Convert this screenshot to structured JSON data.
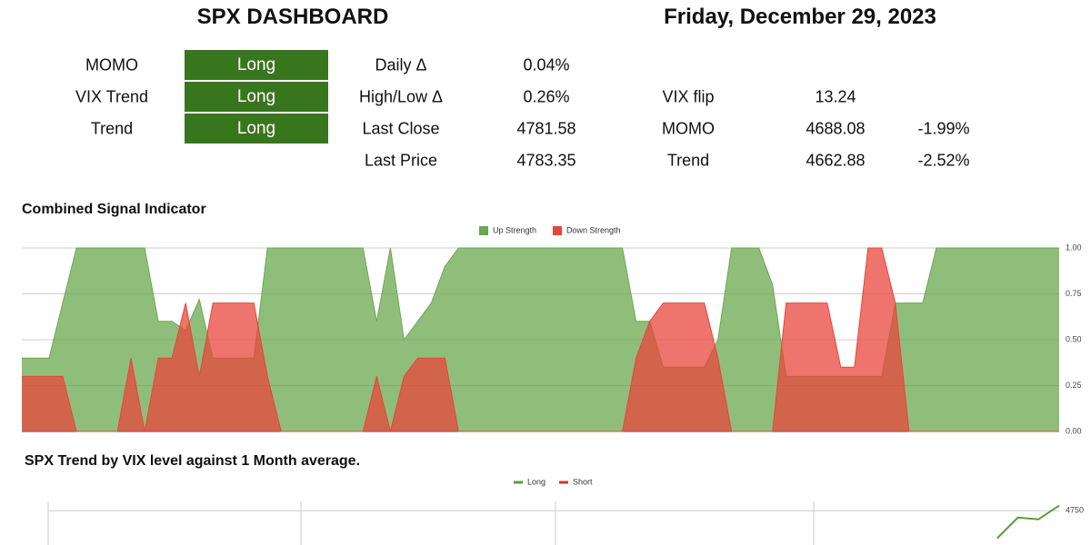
{
  "header": {
    "title": "SPX DASHBOARD",
    "date": "Friday, December 29, 2023"
  },
  "signals": [
    {
      "label": "MOMO",
      "state": "Long"
    },
    {
      "label": "VIX Trend",
      "state": "Long"
    },
    {
      "label": "Trend",
      "state": "Long"
    }
  ],
  "metrics": [
    {
      "label": "Daily Δ",
      "value": "0.04%"
    },
    {
      "label": "High/Low Δ",
      "value": "0.26%"
    },
    {
      "label": "Last Close",
      "value": "4781.58"
    },
    {
      "label": "Last Price",
      "value": "4783.35"
    }
  ],
  "levels": [
    {
      "label": "VIX flip",
      "value": "13.24"
    },
    {
      "label": "MOMO",
      "value": "4688.08",
      "change": "-1.99%"
    },
    {
      "label": "Trend",
      "value": "4662.88",
      "change": "-2.52%"
    }
  ],
  "chart_data": [
    {
      "type": "area",
      "title": "Combined Signal Indicator",
      "categories": [
        null,
        null,
        null,
        null,
        null,
        null,
        null,
        null,
        null,
        null,
        null,
        null,
        null,
        null,
        null,
        null,
        null,
        null,
        null,
        null,
        null,
        null,
        null,
        null,
        null,
        null,
        null,
        null,
        null,
        null,
        null,
        null,
        null,
        null,
        null,
        null,
        null,
        null,
        null,
        null,
        null,
        null,
        null,
        null,
        null,
        null,
        null,
        null,
        null,
        null,
        null,
        null,
        null,
        null,
        null,
        null,
        null,
        null,
        null,
        null,
        null,
        null,
        null,
        null,
        null,
        null,
        null,
        null,
        null,
        null,
        null,
        null,
        null,
        null,
        null,
        null,
        null
      ],
      "series": [
        {
          "name": "Up Strength",
          "color": "#6aa84f",
          "values": [
            0.4,
            0.4,
            0.4,
            0.7,
            1,
            1,
            1,
            1,
            1,
            1,
            0.6,
            0.6,
            0.55,
            0.72,
            0.4,
            0.4,
            0.4,
            0.4,
            1,
            1,
            1,
            1,
            1,
            1,
            1,
            1,
            0.6,
            1,
            0.5,
            0.6,
            0.7,
            0.9,
            1,
            1,
            1,
            1,
            1,
            1,
            1,
            1,
            1,
            1,
            1,
            1,
            1,
            0.6,
            0.6,
            0.35,
            0.35,
            0.35,
            0.35,
            0.5,
            1,
            1,
            1,
            0.8,
            0.3,
            0.3,
            0.3,
            0.3,
            0.3,
            0.3,
            0.3,
            0.3,
            0.7,
            0.7,
            0.7,
            1,
            1,
            1,
            1,
            1,
            1,
            1,
            1,
            1,
            1
          ]
        },
        {
          "name": "Down Strength",
          "color": "#e8453c",
          "values": [
            0.3,
            0.3,
            0.3,
            0.3,
            0,
            0,
            0,
            0,
            0.4,
            0,
            0.4,
            0.4,
            0.7,
            0.3,
            0.7,
            0.7,
            0.7,
            0.7,
            0.3,
            0,
            0,
            0,
            0,
            0,
            0,
            0,
            0.3,
            0,
            0.3,
            0.4,
            0.4,
            0.4,
            0,
            0,
            0,
            0,
            0,
            0,
            0,
            0,
            0,
            0,
            0,
            0,
            0,
            0.4,
            0.6,
            0.7,
            0.7,
            0.7,
            0.7,
            0.4,
            0,
            0,
            0,
            0,
            0.7,
            0.7,
            0.7,
            0.7,
            0.35,
            0.35,
            1,
            1,
            0.7,
            0,
            0,
            0,
            0,
            0,
            0,
            0,
            0,
            0,
            0,
            0,
            0
          ]
        }
      ],
      "ylim": [
        0,
        1
      ],
      "yticks": [
        {
          "value": 0,
          "label": "0.00"
        },
        {
          "value": 0.25,
          "label": "0.25"
        },
        {
          "value": 0.5,
          "label": "0.50"
        },
        {
          "value": 0.75,
          "label": "0.75"
        },
        {
          "value": 1,
          "label": "1.00"
        }
      ],
      "grid": true
    },
    {
      "type": "line",
      "title": "SPX Trend by VIX level against 1 Month average.",
      "categories": [
        null,
        null,
        null,
        null,
        null,
        null,
        null,
        null,
        null,
        null,
        null,
        null,
        null,
        null,
        null,
        null,
        null,
        null,
        null,
        null,
        null,
        null,
        null,
        null,
        null,
        null,
        null,
        null,
        null,
        null,
        null,
        null,
        null,
        null,
        null,
        null,
        null,
        null,
        null,
        null,
        null,
        null,
        null,
        null,
        null,
        null,
        null,
        null,
        null,
        null
      ],
      "series": [
        {
          "name": "Long",
          "color": "#5a9e3c",
          "values": [
            null,
            null,
            null,
            null,
            null,
            null,
            null,
            null,
            null,
            null,
            null,
            null,
            null,
            null,
            null,
            null,
            null,
            null,
            null,
            null,
            null,
            null,
            null,
            null,
            null,
            null,
            null,
            null,
            null,
            null,
            null,
            null,
            null,
            null,
            null,
            null,
            null,
            null,
            null,
            null,
            null,
            null,
            null,
            null,
            null,
            null,
            4702,
            4738,
            4735,
            4759
          ]
        },
        {
          "name": "Short",
          "color": "#d9302c",
          "values": [
            null,
            null,
            null,
            null,
            null,
            null,
            null,
            null,
            null,
            null,
            null,
            null,
            null,
            null,
            null,
            null,
            null,
            null,
            null,
            null,
            null,
            null,
            null,
            null,
            null,
            null,
            null,
            null,
            null,
            null,
            null,
            null,
            null,
            null,
            null,
            null,
            null,
            null,
            null,
            null,
            null,
            null,
            null,
            null,
            null,
            null,
            null,
            null,
            null,
            null
          ]
        }
      ],
      "ylim": [
        4690,
        4760
      ],
      "yticks": [
        4750
      ],
      "grid": true
    }
  ]
}
